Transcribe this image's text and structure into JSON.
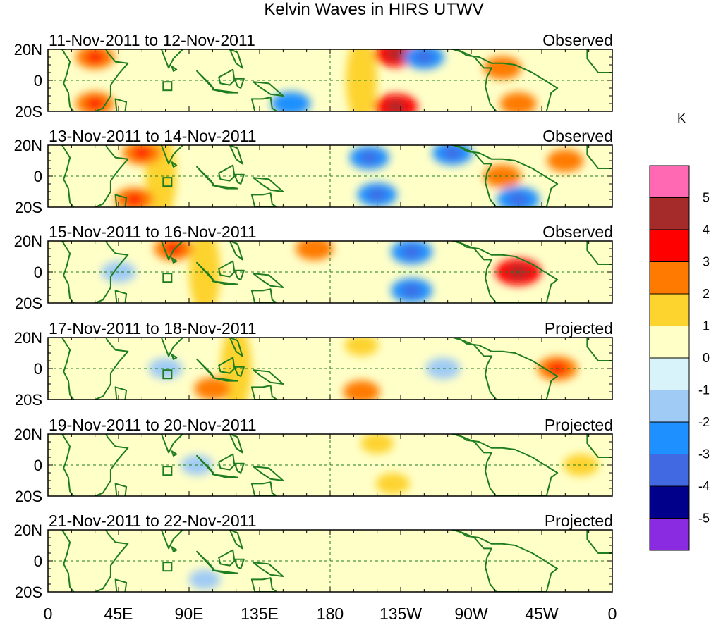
{
  "chart_data": {
    "type": "heatmap",
    "title": "Kelvin Waves in HIRS UTWV",
    "variable": "HIRS UTWV anomaly",
    "units": "K",
    "x_tick_labels": [
      "0",
      "45E",
      "90E",
      "135E",
      "180",
      "135W",
      "90W",
      "45W",
      "0"
    ],
    "x_tick_degrees": [
      0,
      45,
      90,
      135,
      180,
      225,
      270,
      315,
      360
    ],
    "y_tick_labels": [
      "20N",
      "0",
      "20S"
    ],
    "y_tick_degrees": [
      20,
      0,
      -20
    ],
    "xlim": [
      0,
      360
    ],
    "ylim": [
      -20,
      20
    ],
    "colorbar": {
      "label": "K",
      "levels": [
        -5,
        -4,
        -3,
        -2,
        -1,
        0,
        1,
        2,
        3,
        4,
        5
      ],
      "level_labels": [
        "-5",
        "-4",
        "-3",
        "-2",
        "-1",
        "0",
        "1",
        "2",
        "3",
        "4",
        "5"
      ],
      "colors_low_to_high": [
        "#8a2be2",
        "#00008b",
        "#4169e1",
        "#1e90ff",
        "#9fcbf5",
        "#d9f3fb",
        "#ffffc8",
        "#fdd32e",
        "#ff7a00",
        "#ff0000",
        "#a52a2a",
        "#ff69b4"
      ]
    },
    "panels": [
      {
        "period": "11-Nov-2011 to 12-Nov-2011",
        "status": "Observed",
        "features": [
          {
            "lon": 200,
            "lat": 0,
            "value": 1.6,
            "note": "positive band"
          },
          {
            "lon": 222,
            "lat": 17,
            "value": 3.2
          },
          {
            "lon": 222,
            "lat": -17,
            "value": 3.2
          },
          {
            "lon": 240,
            "lat": 15,
            "value": -2.6
          },
          {
            "lon": 30,
            "lat": 15,
            "value": 2.4
          },
          {
            "lon": 30,
            "lat": -15,
            "value": 2.4
          },
          {
            "lon": 155,
            "lat": -15,
            "value": -2.4
          },
          {
            "lon": 290,
            "lat": 8,
            "value": 2.2
          },
          {
            "lon": 300,
            "lat": -15,
            "value": 2.0
          }
        ]
      },
      {
        "period": "13-Nov-2011 to 14-Nov-2011",
        "status": "Observed",
        "features": [
          {
            "lon": 72,
            "lat": 0,
            "value": 1.5,
            "note": "positive band"
          },
          {
            "lon": 60,
            "lat": 15,
            "value": 2.4
          },
          {
            "lon": 55,
            "lat": -15,
            "value": 2.4
          },
          {
            "lon": 205,
            "lat": 12,
            "value": -2.5
          },
          {
            "lon": 210,
            "lat": -12,
            "value": -2.5
          },
          {
            "lon": 258,
            "lat": 15,
            "value": -2.6
          },
          {
            "lon": 290,
            "lat": 0,
            "value": 2.2
          },
          {
            "lon": 300,
            "lat": -15,
            "value": -3.0
          },
          {
            "lon": 330,
            "lat": 10,
            "value": 2.0
          }
        ]
      },
      {
        "period": "15-Nov-2011 to 16-Nov-2011",
        "status": "Observed",
        "features": [
          {
            "lon": 100,
            "lat": 0,
            "value": 1.6,
            "note": "positive band"
          },
          {
            "lon": 80,
            "lat": 15,
            "value": 2.4
          },
          {
            "lon": 232,
            "lat": 13,
            "value": -2.8
          },
          {
            "lon": 232,
            "lat": -12,
            "value": -2.8
          },
          {
            "lon": 300,
            "lat": 0,
            "value": 3.6
          },
          {
            "lon": 170,
            "lat": 15,
            "value": 2.2
          },
          {
            "lon": 45,
            "lat": 0,
            "value": -1.6
          }
        ]
      },
      {
        "period": "17-Nov-2011 to 18-Nov-2011",
        "status": "Projected",
        "features": [
          {
            "lon": 120,
            "lat": 0,
            "value": 1.2,
            "note": "positive band"
          },
          {
            "lon": 105,
            "lat": -13,
            "value": 2.0
          },
          {
            "lon": 252,
            "lat": 0,
            "value": -1.6
          },
          {
            "lon": 325,
            "lat": 0,
            "value": 2.6
          },
          {
            "lon": 200,
            "lat": -15,
            "value": 2.0
          },
          {
            "lon": 200,
            "lat": 15,
            "value": 1.5
          },
          {
            "lon": 75,
            "lat": 0,
            "value": -1.5
          }
        ]
      },
      {
        "period": "19-Nov-2011 to 20-Nov-2011",
        "status": "Projected",
        "features": [
          {
            "lon": 135,
            "lat": 0,
            "value": 0.8
          },
          {
            "lon": 340,
            "lat": 0,
            "value": 1.8
          },
          {
            "lon": 220,
            "lat": -12,
            "value": 1.5
          },
          {
            "lon": 210,
            "lat": 14,
            "value": 1.3
          },
          {
            "lon": 95,
            "lat": 0,
            "value": -1.2
          }
        ]
      },
      {
        "period": "21-Nov-2011 to 22-Nov-2011",
        "status": "Projected",
        "features": [
          {
            "lon": 150,
            "lat": 0,
            "value": 0.6
          },
          {
            "lon": 225,
            "lat": 0,
            "value": 0.6
          },
          {
            "lon": 100,
            "lat": -12,
            "value": -1.1
          },
          {
            "lon": 30,
            "lat": 0,
            "value": 0.5
          }
        ]
      }
    ]
  }
}
